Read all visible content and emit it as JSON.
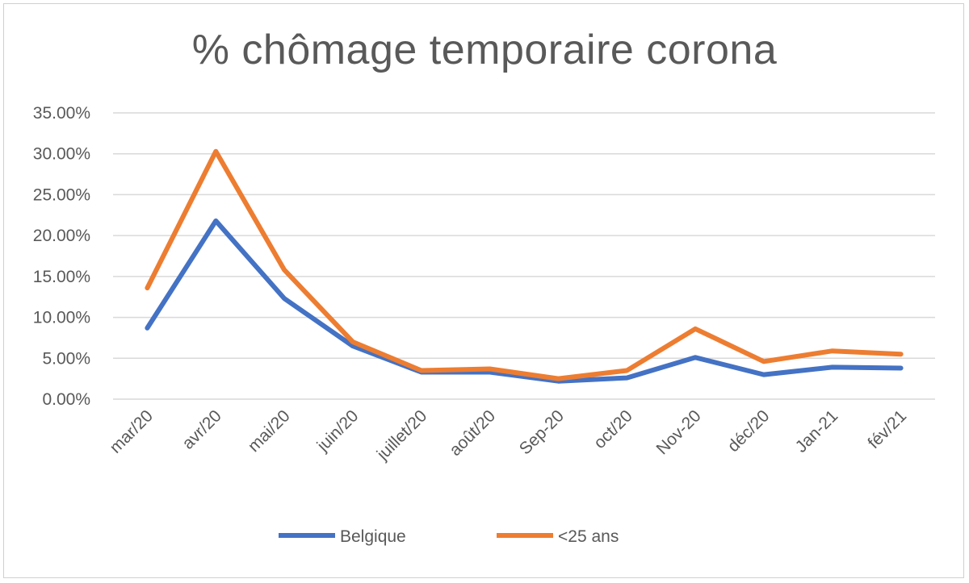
{
  "chart_data": {
    "type": "line",
    "title": "% chômage temporaire corona",
    "categories": [
      "mar/20",
      "avr/20",
      "mai/20",
      "juin/20",
      "juillet/20",
      "août/20",
      "Sep-20",
      "oct/20",
      "Nov-20",
      "déc/20",
      "Jan-21",
      "fév/21"
    ],
    "y_ticks": [
      "0.00%",
      "5.00%",
      "10.00%",
      "15.00%",
      "20.00%",
      "25.00%",
      "30.00%",
      "35.00%"
    ],
    "ylim": [
      0,
      35
    ],
    "grid": true,
    "legend_position": "bottom",
    "series": [
      {
        "name": "Belgique",
        "color": "#4472C4",
        "values": [
          8.7,
          21.8,
          12.3,
          6.5,
          3.3,
          3.3,
          2.2,
          2.6,
          5.1,
          3.0,
          3.9,
          3.8
        ]
      },
      {
        "name": "<25 ans",
        "color": "#ED7D31",
        "values": [
          13.6,
          30.3,
          15.8,
          7.0,
          3.5,
          3.7,
          2.5,
          3.5,
          8.6,
          4.6,
          5.9,
          5.5
        ]
      }
    ]
  }
}
